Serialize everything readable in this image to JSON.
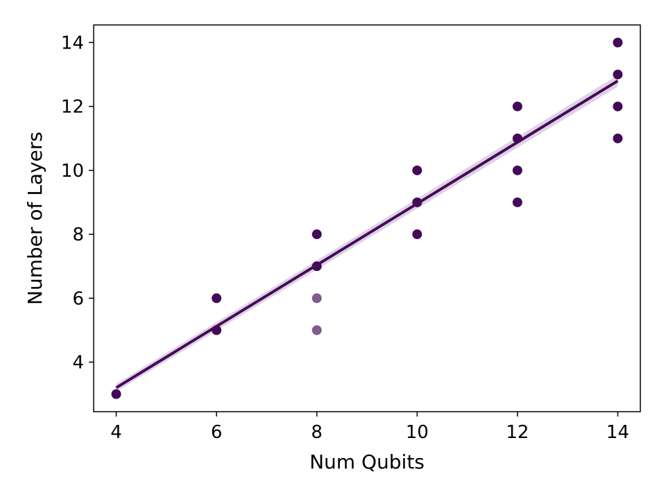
{
  "chart_data": {
    "type": "scatter",
    "title": "",
    "xlabel": "Num Qubits",
    "ylabel": "Number of Layers",
    "xlim": [
      3.55,
      14.45
    ],
    "ylim": [
      2.45,
      14.55
    ],
    "xticks": [
      4,
      6,
      8,
      10,
      12,
      14
    ],
    "yticks": [
      4,
      6,
      8,
      10,
      12,
      14
    ],
    "grid": false,
    "legend": "none",
    "colors": {
      "points": "#440a57",
      "light_points": "#6a3d7c",
      "line": "#440a57",
      "band": "#c9b3d3"
    },
    "points": [
      {
        "x": 4,
        "y": 3
      },
      {
        "x": 6,
        "y": 5
      },
      {
        "x": 6,
        "y": 6
      },
      {
        "x": 8,
        "y": 5,
        "light": true
      },
      {
        "x": 8,
        "y": 6,
        "light": true
      },
      {
        "x": 8,
        "y": 7
      },
      {
        "x": 8,
        "y": 8
      },
      {
        "x": 10,
        "y": 8
      },
      {
        "x": 10,
        "y": 9
      },
      {
        "x": 10,
        "y": 10
      },
      {
        "x": 12,
        "y": 9
      },
      {
        "x": 12,
        "y": 10
      },
      {
        "x": 12,
        "y": 11
      },
      {
        "x": 12,
        "y": 12
      },
      {
        "x": 14,
        "y": 11
      },
      {
        "x": 14,
        "y": 12
      },
      {
        "x": 14,
        "y": 13
      },
      {
        "x": 14,
        "y": 14
      }
    ],
    "regression": {
      "x": [
        4,
        14
      ],
      "y": [
        3.2,
        12.8
      ],
      "ci_halfwidth": [
        0.12,
        0.18
      ]
    }
  }
}
